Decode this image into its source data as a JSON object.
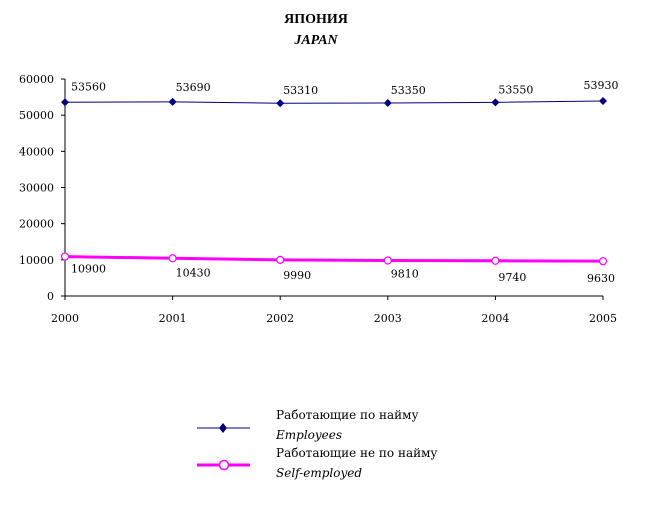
{
  "chart_data": {
    "type": "line",
    "title": "ЯПОНИЯ",
    "subtitle": "JAPAN",
    "categories": [
      "2000",
      "2001",
      "2002",
      "2003",
      "2004",
      "2005"
    ],
    "ylim": [
      0,
      60000
    ],
    "yticks": [
      "0",
      "10000",
      "20000",
      "30000",
      "40000",
      "50000",
      "60000"
    ],
    "grid": false,
    "legend_position": "bottom",
    "series": [
      {
        "name": "Работающие по найму",
        "name_en": "Employees",
        "color": "#000080",
        "marker": "diamond",
        "values": [
          53560,
          53690,
          53310,
          53350,
          53550,
          53930
        ],
        "labels": [
          "53560",
          "53690",
          "53310",
          "53350",
          "53550",
          "53930"
        ]
      },
      {
        "name": "Работающие не по найму",
        "name_en": "Self-employed",
        "color": "#ff00ff",
        "marker": "circle",
        "values": [
          10900,
          10430,
          9990,
          9810,
          9740,
          9630
        ],
        "labels": [
          "10900",
          "10430",
          "9990",
          "9810",
          "9740",
          "9630"
        ]
      }
    ]
  }
}
